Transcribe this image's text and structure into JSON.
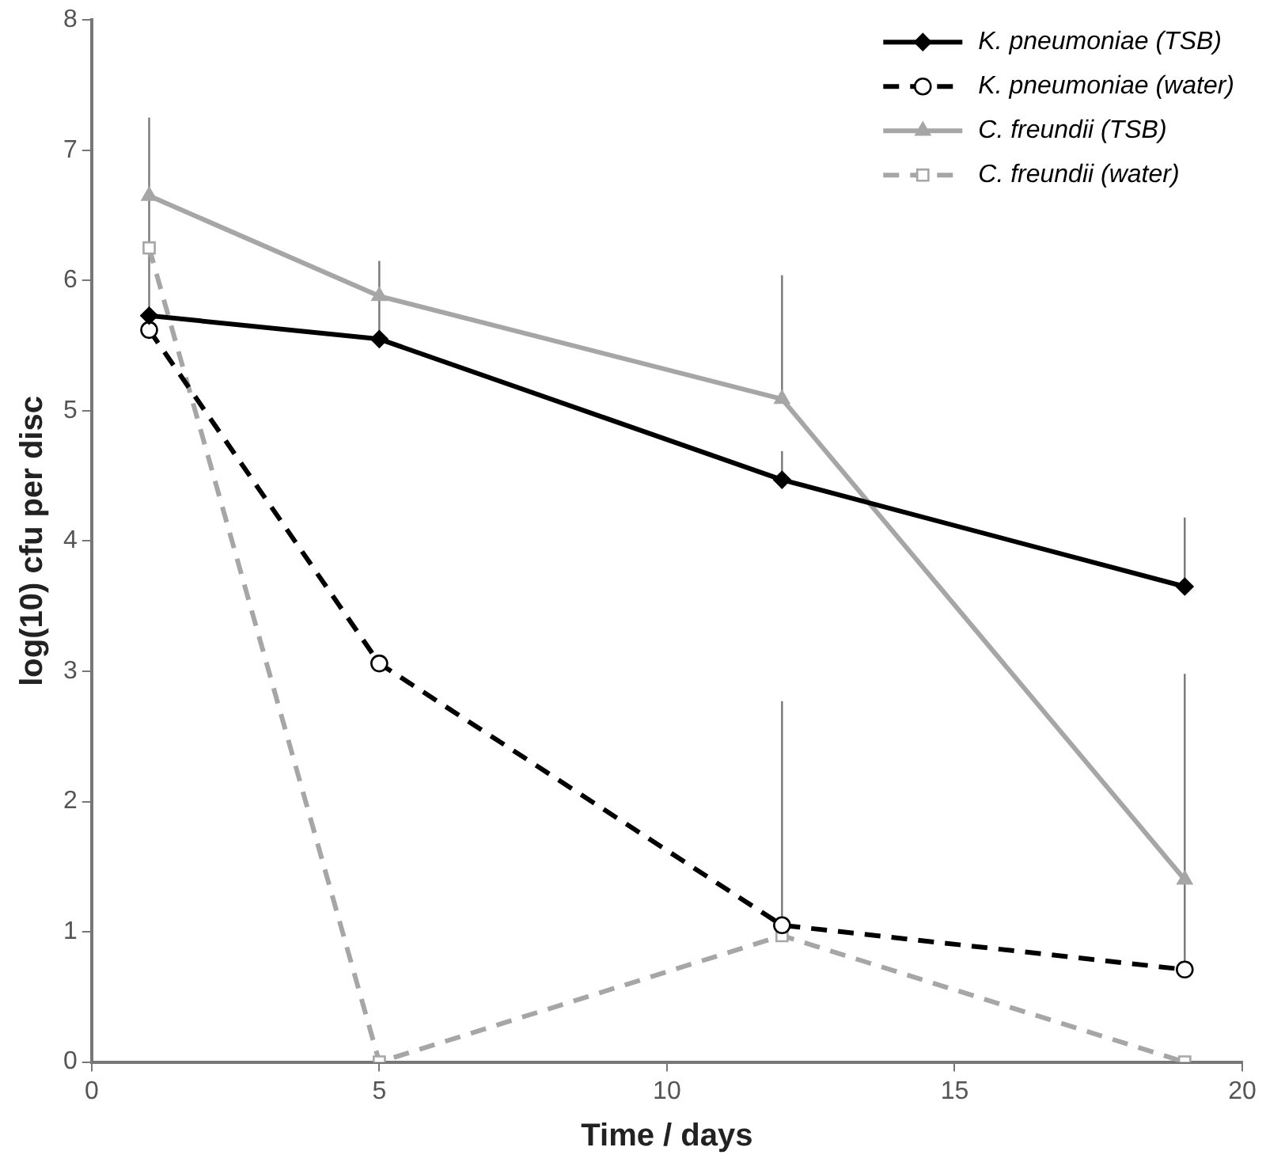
{
  "chart_data": {
    "type": "line",
    "xlabel": "Time / days",
    "ylabel": "log(10) cfu per disc",
    "x": [
      1,
      5,
      12,
      19
    ],
    "series": [
      {
        "name": "K. pneumoniae (TSB)",
        "color": "#000000",
        "marker": "diamond",
        "line_style": "solid",
        "values": [
          5.73,
          5.55,
          4.47,
          3.65
        ],
        "errors": [
          [
            5.73,
            7.25
          ],
          null,
          [
            4.47,
            4.69
          ],
          [
            3.65,
            4.18
          ]
        ]
      },
      {
        "name": "K. pneumoniae (water)",
        "color": "#000000",
        "marker": "circle",
        "line_style": "dashed",
        "values": [
          5.62,
          3.06,
          1.05,
          0.71
        ],
        "errors": [
          null,
          null,
          [
            1.05,
            2.77
          ],
          [
            0.71,
            1.4
          ]
        ]
      },
      {
        "name": "C. freundii (TSB)",
        "color": "#a6a6a6",
        "marker": "triangle",
        "line_style": "solid",
        "values": [
          6.65,
          5.88,
          5.09,
          1.4
        ],
        "errors": [
          null,
          [
            5.55,
            6.15
          ],
          [
            5.09,
            6.04
          ],
          [
            1.4,
            2.98
          ]
        ]
      },
      {
        "name": "C. freundii (water)",
        "color": "#a6a6a6",
        "marker": "square",
        "line_style": "dashed",
        "values": [
          6.25,
          0,
          0.97,
          0
        ]
      }
    ],
    "xlim": [
      0,
      20
    ],
    "xticks": [
      0,
      5,
      10,
      15,
      20
    ],
    "ylim": [
      0,
      8
    ],
    "yticks": [
      0,
      1,
      2,
      3,
      4,
      5,
      6,
      7,
      8
    ],
    "grid": false,
    "legend": "top right"
  }
}
